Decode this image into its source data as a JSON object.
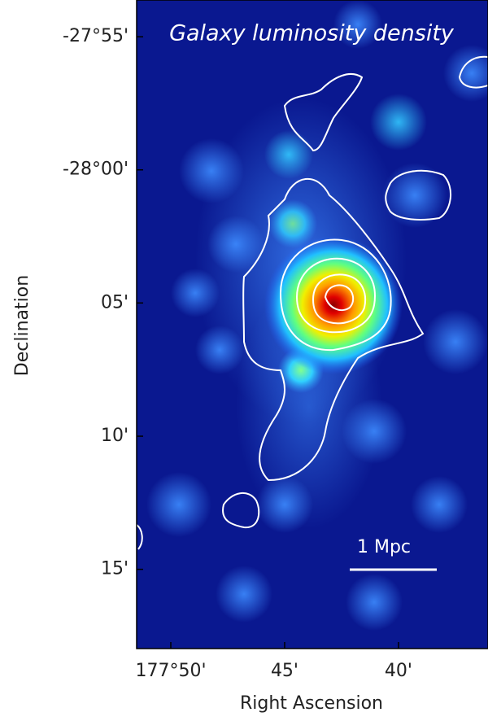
{
  "chart_data": {
    "type": "image",
    "title": "Galaxy luminosity density",
    "xlabel": "Right Ascension",
    "ylabel": "Declination",
    "xlim": [
      177.8583,
      177.6012
    ],
    "ylim": [
      -28.2996,
      -27.8937
    ],
    "xticks": [
      {
        "value": 177.8333,
        "label": "177°50'"
      },
      {
        "value": 177.75,
        "label": "45'"
      },
      {
        "value": 177.6667,
        "label": "40'"
      }
    ],
    "yticks": [
      {
        "value": -27.9167,
        "label": "-27°55'"
      },
      {
        "value": -28.0,
        "label": "-28°00'"
      },
      {
        "value": -28.0833,
        "label": "05'"
      },
      {
        "value": -28.1667,
        "label": "10'"
      },
      {
        "value": -28.25,
        "label": "15'"
      }
    ],
    "scale_bar": "1 Mpc"
  }
}
